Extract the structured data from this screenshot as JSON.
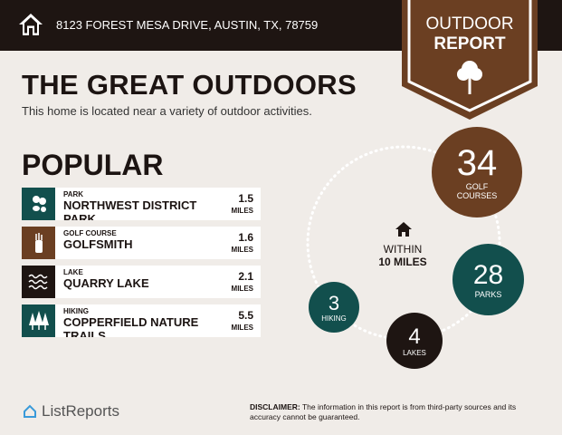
{
  "header": {
    "address": "8123 FOREST MESA DRIVE, AUSTIN, TX, 78759"
  },
  "banner": {
    "line1": "OUTDOOR",
    "line2": "REPORT"
  },
  "title": "THE GREAT OUTDOORS",
  "subtitle": "This home is located near a variety of outdoor activities.",
  "popular": {
    "heading": "POPULAR",
    "items": [
      {
        "category": "PARK",
        "name": "NORTHWEST DISTRICT PARK",
        "distance": "1.5",
        "unit": "MILES",
        "icon": "park-icon",
        "color": "#124f4d"
      },
      {
        "category": "GOLF COURSE",
        "name": "GOLFSMITH",
        "distance": "1.6",
        "unit": "MILES",
        "icon": "golf-bag-icon",
        "color": "#6b3f22"
      },
      {
        "category": "LAKE",
        "name": "QUARRY LAKE",
        "distance": "2.1",
        "unit": "MILES",
        "icon": "waves-icon",
        "color": "#1e1512"
      },
      {
        "category": "HIKING",
        "name": "COPPERFIELD NATURE TRAILS",
        "distance": "5.5",
        "unit": "MILES",
        "icon": "trees-icon",
        "color": "#124f4d"
      }
    ]
  },
  "summary": {
    "within_line1": "WITHIN",
    "within_line2": "10 MILES",
    "bubbles": [
      {
        "count": "34",
        "label1": "GOLF",
        "label2": "COURSES",
        "color": "#6b3f22"
      },
      {
        "count": "28",
        "label1": "PARKS",
        "label2": "",
        "color": "#124f4d"
      },
      {
        "count": "4",
        "label1": "LAKES",
        "label2": "",
        "color": "#1e1512"
      },
      {
        "count": "3",
        "label1": "HIKING",
        "label2": "",
        "color": "#124f4d"
      }
    ]
  },
  "footer": {
    "logo": "ListReports",
    "disclaimer_label": "DISCLAIMER:",
    "disclaimer": " The information in this report is from third-party sources and its accuracy cannot be guaranteed."
  }
}
